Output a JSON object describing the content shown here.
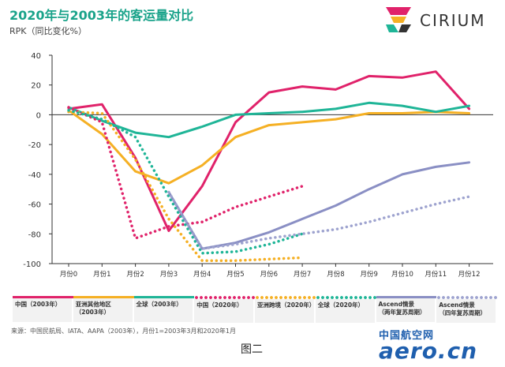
{
  "title": "2020年与2003年的客运量对比",
  "subtitle": "RPK（同比变化%）",
  "brand": "CIRIUM",
  "colors": {
    "china": "#e0226a",
    "asia_other": "#f5b024",
    "global": "#1fb597",
    "ascend_two": "#8a8fc4",
    "ascend_four": "#9ea3cf"
  },
  "chart_data": {
    "type": "line",
    "x_categories": [
      "月份0",
      "月份1",
      "月份2",
      "月份3",
      "月份4",
      "月份5",
      "月份6",
      "月份7",
      "月份8",
      "月份9",
      "月份10",
      "月份11",
      "月份12"
    ],
    "ylim": [
      -100,
      40
    ],
    "yticks": [
      40,
      20,
      0,
      -20,
      -40,
      -60,
      -80,
      -100
    ],
    "grid": false,
    "series": [
      {
        "name": "中国（2003年）",
        "key": "china",
        "style": "solid",
        "x": [
          0,
          1,
          2,
          3,
          4,
          5,
          6,
          7,
          8,
          9,
          10,
          11,
          12
        ],
        "y": [
          4,
          7,
          -29,
          -78,
          -48,
          -5,
          15,
          19,
          17,
          26,
          25,
          29,
          4
        ]
      },
      {
        "name": "亚洲其他地区\n（2003年）",
        "key": "asia_other",
        "style": "solid",
        "x": [
          0,
          1,
          2,
          3,
          4,
          5,
          6,
          7,
          8,
          9,
          10,
          11,
          12
        ],
        "y": [
          3,
          -13,
          -38,
          -46,
          -34,
          -15,
          -7,
          -5,
          -3,
          1,
          1,
          2,
          1
        ]
      },
      {
        "name": "全球（2003年）",
        "key": "global",
        "style": "solid",
        "x": [
          0,
          1,
          2,
          3,
          4,
          5,
          6,
          7,
          8,
          9,
          10,
          11,
          12
        ],
        "y": [
          5,
          -4,
          -12,
          -15,
          -8,
          0,
          1,
          2,
          4,
          8,
          6,
          2,
          6
        ]
      },
      {
        "name": "中国（2020年）",
        "key": "china",
        "style": "dotted",
        "x": [
          0,
          1,
          2,
          3,
          4,
          5,
          6,
          7
        ],
        "y": [
          5,
          -5,
          -83,
          -75,
          -72,
          -62,
          -55,
          -48
        ]
      },
      {
        "name": "亚洲跨境（2020年）",
        "key": "asia_other",
        "style": "dotted",
        "x": [
          0,
          1,
          2,
          3,
          4,
          5,
          6,
          7
        ],
        "y": [
          2,
          1,
          -30,
          -70,
          -98,
          -98,
          -97,
          -96
        ]
      },
      {
        "name": "全球（2020年）",
        "key": "global",
        "style": "dotted",
        "x": [
          0,
          1,
          2,
          3,
          4,
          5,
          6,
          7
        ],
        "y": [
          3,
          -3,
          -15,
          -55,
          -93,
          -92,
          -87,
          -80
        ]
      },
      {
        "name": "Ascend情景\n（两年复苏周期）",
        "key": "ascend_two",
        "style": "solid",
        "x": [
          3,
          4,
          5,
          6,
          7,
          8,
          9,
          10,
          11,
          12
        ],
        "y": [
          -52,
          -90,
          -86,
          -79,
          -70,
          -61,
          -50,
          -40,
          -35,
          -32
        ]
      },
      {
        "name": "Ascend情景\n（四年复苏周期）",
        "key": "ascend_four",
        "style": "dotted",
        "x": [
          3,
          4,
          5,
          6,
          7,
          8,
          9,
          10,
          11,
          12
        ],
        "y": [
          -52,
          -90,
          -87,
          -83,
          -80,
          -77,
          -72,
          -66,
          -60,
          -55
        ]
      }
    ]
  },
  "source_note": "来源：中国民航局、IATA、AAPA（2003年），月份1=2003年3月和2020年1月",
  "caption": "图二",
  "watermark": {
    "top": "中国航空网",
    "main": "aero.cn"
  }
}
